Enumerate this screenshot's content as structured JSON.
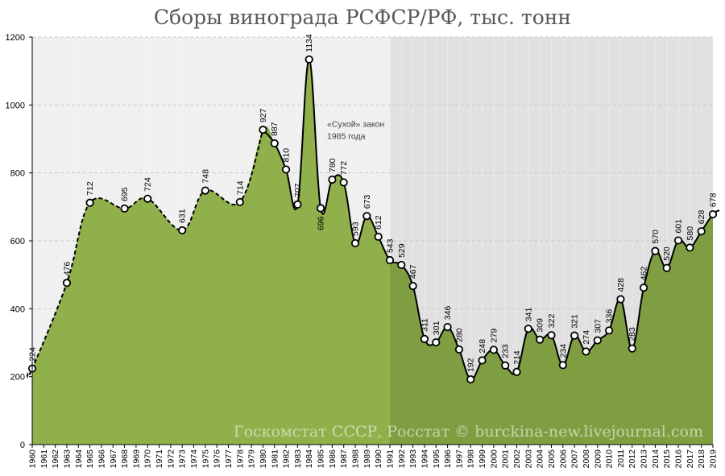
{
  "chart_data": {
    "type": "area",
    "title": "Сборы винограда РСФСР/РФ, тыс. тонн",
    "xlabel": "",
    "ylabel": "",
    "ylim": [
      0,
      1200
    ],
    "yticks": [
      0,
      200,
      400,
      600,
      800,
      1000,
      1200
    ],
    "xlim": [
      1960,
      2019
    ],
    "x_tick_labels": [
      "1960",
      "1961",
      "1962",
      "1963",
      "1964",
      "1965",
      "1966",
      "1967",
      "1968",
      "1969",
      "1970",
      "1971",
      "1972",
      "1973",
      "1974",
      "1975",
      "1976",
      "1977",
      "1978",
      "1979",
      "1980",
      "1981",
      "1982",
      "1983",
      "1984",
      "1985",
      "1986",
      "1987",
      "1988",
      "1989",
      "1990",
      "1991",
      "1992",
      "1993",
      "1994",
      "1995",
      "1996",
      "1997",
      "1998",
      "1999",
      "2000",
      "2001",
      "2002",
      "2003",
      "2004",
      "2005",
      "2006",
      "2007",
      "2008",
      "2009",
      "2010",
      "2011",
      "2012",
      "2013",
      "2014",
      "2015",
      "2016",
      "2017",
      "2018",
      "2019"
    ],
    "grid": true,
    "legend": "none",
    "shaded_region": {
      "from": 1991,
      "to": 2019
    },
    "series": [
      {
        "points": [
          {
            "x": 1960,
            "y": 224,
            "label": "224"
          },
          {
            "x": 1963,
            "y": 476,
            "label": "476"
          },
          {
            "x": 1965,
            "y": 712,
            "label": "712"
          },
          {
            "x": 1968,
            "y": 695,
            "label": "695"
          },
          {
            "x": 1970,
            "y": 724,
            "label": "724"
          },
          {
            "x": 1973,
            "y": 631,
            "label": "631"
          },
          {
            "x": 1975,
            "y": 748,
            "label": "748"
          },
          {
            "x": 1978,
            "y": 714,
            "label": "714"
          },
          {
            "x": 1980,
            "y": 927,
            "label": "927"
          },
          {
            "x": 1981,
            "y": 887,
            "label": "887"
          },
          {
            "x": 1982,
            "y": 810,
            "label": "810"
          },
          {
            "x": 1983,
            "y": 707,
            "label": "707"
          },
          {
            "x": 1984,
            "y": 1134,
            "label": "1134"
          },
          {
            "x": 1985,
            "y": 696,
            "label": "696"
          },
          {
            "x": 1986,
            "y": 780,
            "label": "780"
          },
          {
            "x": 1987,
            "y": 772,
            "label": "772"
          },
          {
            "x": 1988,
            "y": 593,
            "label": "593"
          },
          {
            "x": 1989,
            "y": 673,
            "label": "673"
          },
          {
            "x": 1990,
            "y": 612,
            "label": "612"
          },
          {
            "x": 1991,
            "y": 543,
            "label": "543"
          },
          {
            "x": 1992,
            "y": 529,
            "label": "529"
          },
          {
            "x": 1993,
            "y": 467,
            "label": "467"
          },
          {
            "x": 1994,
            "y": 311,
            "label": "311"
          },
          {
            "x": 1995,
            "y": 301,
            "label": "301"
          },
          {
            "x": 1996,
            "y": 346,
            "label": "346"
          },
          {
            "x": 1997,
            "y": 280,
            "label": "280"
          },
          {
            "x": 1998,
            "y": 192,
            "label": "192"
          },
          {
            "x": 1999,
            "y": 248,
            "label": "248"
          },
          {
            "x": 2000,
            "y": 279,
            "label": "279"
          },
          {
            "x": 2001,
            "y": 233,
            "label": "233"
          },
          {
            "x": 2002,
            "y": 214,
            "label": "214"
          },
          {
            "x": 2003,
            "y": 341,
            "label": "341"
          },
          {
            "x": 2004,
            "y": 309,
            "label": "309"
          },
          {
            "x": 2005,
            "y": 322,
            "label": "322"
          },
          {
            "x": 2006,
            "y": 234,
            "label": "234"
          },
          {
            "x": 2007,
            "y": 321,
            "label": "321"
          },
          {
            "x": 2008,
            "y": 274,
            "label": "274"
          },
          {
            "x": 2009,
            "y": 307,
            "label": "307"
          },
          {
            "x": 2010,
            "y": 336,
            "label": "336"
          },
          {
            "x": 2011,
            "y": 428,
            "label": "428"
          },
          {
            "x": 2012,
            "y": 283,
            "label": "283"
          },
          {
            "x": 2013,
            "y": 462,
            "label": "462"
          },
          {
            "x": 2014,
            "y": 570,
            "label": "570"
          },
          {
            "x": 2015,
            "y": 520,
            "label": "520"
          },
          {
            "x": 2016,
            "y": 601,
            "label": "601"
          },
          {
            "x": 2017,
            "y": 580,
            "label": "580"
          },
          {
            "x": 2018,
            "y": 628,
            "label": "628"
          },
          {
            "x": 2019,
            "y": 678,
            "label": "678"
          }
        ]
      }
    ],
    "annotations": [
      {
        "x": 1985,
        "y": 950,
        "lines": [
          "«Сухой» закон",
          "1985 года"
        ]
      }
    ],
    "source": "Госкомстат СССР, Росстат © burckina-new.livejournal.com",
    "colors": {
      "area_fill": "#8fb04a",
      "area_fill_shaded": "#7f9e42",
      "line": "#000000",
      "marker_fill": "#ffffff",
      "plot_background": "#f0f0f0",
      "shaded_background": "#e1e1e1",
      "grid": "#c8c8c8"
    }
  }
}
